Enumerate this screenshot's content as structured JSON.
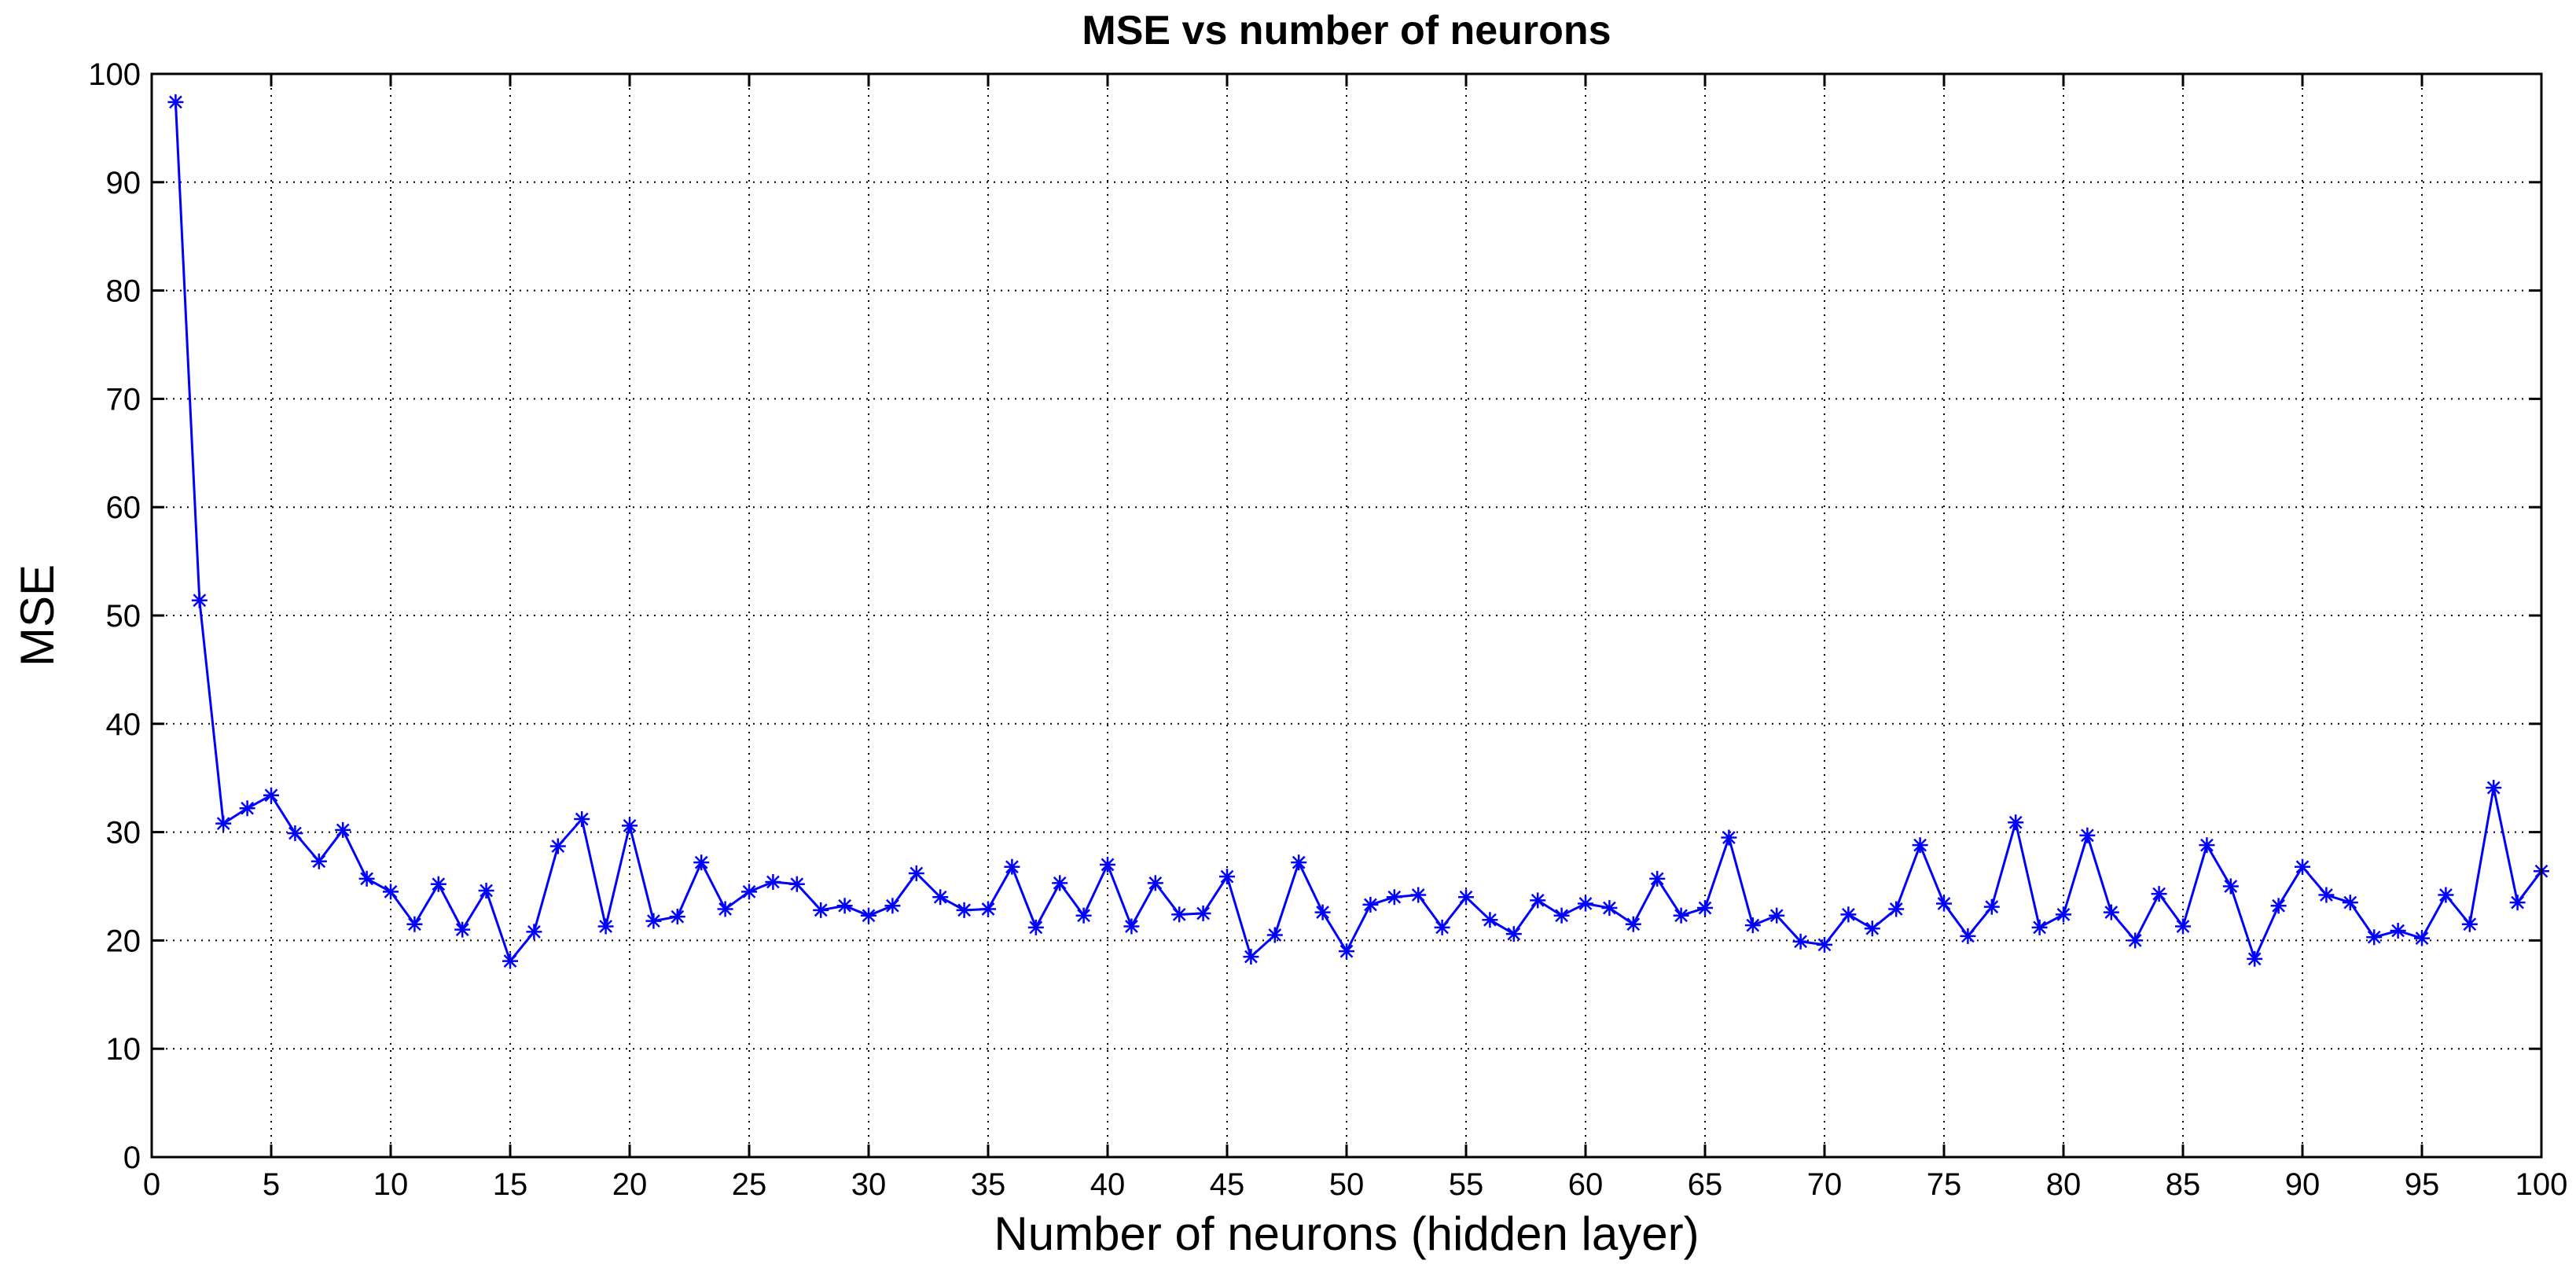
{
  "chart_data": {
    "type": "line",
    "title": "MSE vs number of neurons",
    "xlabel": "Number of neurons (hidden layer)",
    "ylabel": "MSE",
    "xlim": [
      0,
      100
    ],
    "ylim": [
      0,
      100
    ],
    "xticks": [
      0,
      5,
      10,
      15,
      20,
      25,
      30,
      35,
      40,
      45,
      50,
      55,
      60,
      65,
      70,
      75,
      80,
      85,
      90,
      95,
      100
    ],
    "yticks": [
      0,
      10,
      20,
      30,
      40,
      50,
      60,
      70,
      80,
      90,
      100
    ],
    "grid": true,
    "grid_style": "dotted",
    "series": [
      {
        "color": "#0000ff",
        "marker": "asterisk",
        "x": [
          1,
          2,
          3,
          4,
          5,
          6,
          7,
          8,
          9,
          10,
          11,
          12,
          13,
          14,
          15,
          16,
          17,
          18,
          19,
          20,
          21,
          22,
          23,
          24,
          25,
          26,
          27,
          28,
          29,
          30,
          31,
          32,
          33,
          34,
          35,
          36,
          37,
          38,
          39,
          40,
          41,
          42,
          43,
          44,
          45,
          46,
          47,
          48,
          49,
          50,
          51,
          52,
          53,
          54,
          55,
          56,
          57,
          58,
          59,
          60,
          61,
          62,
          63,
          64,
          65,
          66,
          67,
          68,
          69,
          70,
          71,
          72,
          73,
          74,
          75,
          76,
          77,
          78,
          79,
          80,
          81,
          82,
          83,
          84,
          85,
          86,
          87,
          88,
          89,
          90,
          91,
          92,
          93,
          94,
          95,
          96,
          97,
          98,
          99,
          100
        ],
        "values": [
          97.4,
          51.4,
          30.8,
          32.2,
          33.4,
          29.9,
          27.3,
          30.2,
          25.7,
          24.5,
          21.5,
          25.2,
          21.0,
          24.6,
          18.1,
          20.8,
          28.7,
          31.2,
          21.3,
          30.6,
          21.8,
          22.2,
          27.2,
          22.9,
          24.5,
          25.4,
          25.2,
          22.8,
          23.2,
          22.3,
          23.2,
          26.2,
          24.0,
          22.8,
          22.9,
          26.8,
          21.2,
          25.3,
          22.3,
          27.0,
          21.3,
          25.3,
          22.4,
          22.5,
          25.9,
          18.5,
          20.5,
          27.2,
          22.6,
          19.0,
          23.3,
          24.0,
          24.2,
          21.2,
          24.0,
          21.9,
          20.6,
          23.7,
          22.3,
          23.4,
          23.0,
          21.5,
          25.7,
          22.3,
          23.0,
          29.5,
          21.4,
          22.3,
          19.9,
          19.6,
          22.4,
          21.1,
          22.9,
          28.8,
          23.4,
          20.4,
          23.1,
          30.9,
          21.2,
          22.4,
          29.7,
          22.6,
          20.0,
          24.3,
          21.3,
          28.8,
          25.0,
          18.3,
          23.2,
          26.8,
          24.2,
          23.5,
          20.3,
          20.9,
          20.2,
          24.2,
          21.5,
          34.1,
          23.5,
          26.4
        ]
      }
    ]
  }
}
